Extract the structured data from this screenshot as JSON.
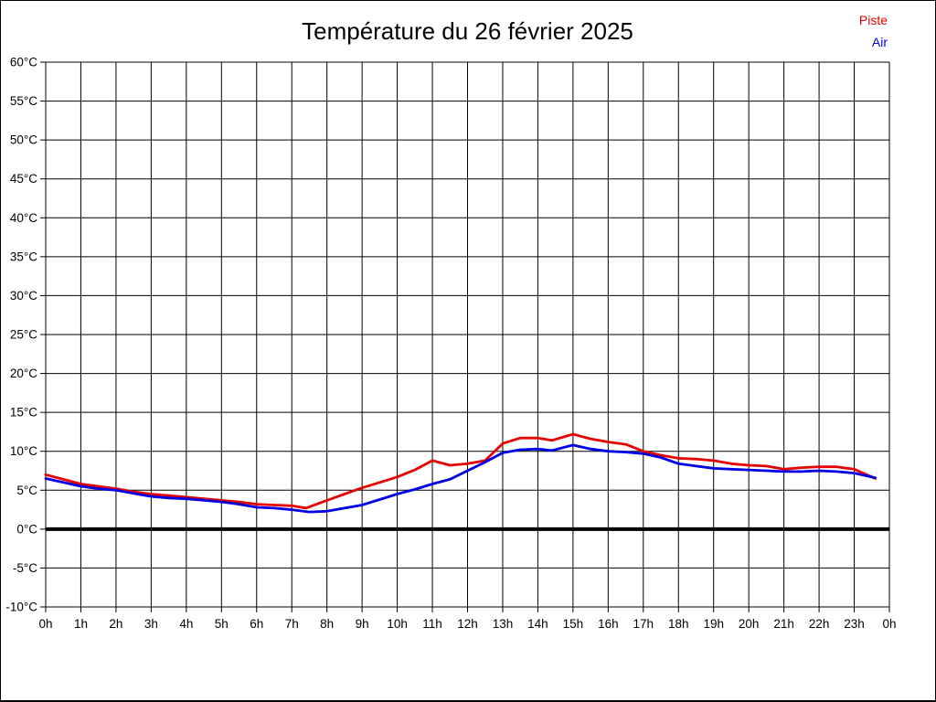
{
  "title": "Température du 26 février 2025",
  "legend": {
    "position": "top-right",
    "items": [
      {
        "label": "Piste",
        "color": "#e60000"
      },
      {
        "label": "Air",
        "color": "#0000e6"
      }
    ]
  },
  "chart_data": {
    "type": "line",
    "title": "Température du 26 février 2025",
    "xlabel": "",
    "ylabel": "",
    "xlim": [
      0,
      24
    ],
    "ylim": [
      -10,
      60
    ],
    "grid": true,
    "grid_color": "#000000",
    "background": "#ffffff",
    "legend_position": "top-right",
    "xtick_values": [
      0,
      1,
      2,
      3,
      4,
      5,
      6,
      7,
      8,
      9,
      10,
      11,
      12,
      13,
      14,
      15,
      16,
      17,
      18,
      19,
      20,
      21,
      22,
      23,
      24
    ],
    "xtick_labels": [
      "0h",
      "1h",
      "2h",
      "3h",
      "4h",
      "5h",
      "6h",
      "7h",
      "8h",
      "9h",
      "10h",
      "11h",
      "12h",
      "13h",
      "14h",
      "15h",
      "16h",
      "17h",
      "18h",
      "19h",
      "20h",
      "21h",
      "22h",
      "23h",
      "0h"
    ],
    "ytick_values": [
      -10,
      -5,
      0,
      5,
      10,
      15,
      20,
      25,
      30,
      35,
      40,
      45,
      50,
      55,
      60
    ],
    "ytick_labels": [
      "-10°C",
      "-5°C",
      "0°C",
      "5°C",
      "10°C",
      "15°C",
      "20°C",
      "25°C",
      "30°C",
      "35°C",
      "40°C",
      "45°C",
      "50°C",
      "55°C",
      "60°C"
    ],
    "zero_line": {
      "value": 0,
      "color": "#000000",
      "width": 4
    },
    "series": [
      {
        "name": "Piste",
        "color": "#e60000",
        "unit": "°C",
        "points": [
          [
            0,
            7.0
          ],
          [
            0.5,
            6.4
          ],
          [
            1,
            5.8
          ],
          [
            1.5,
            5.5
          ],
          [
            2,
            5.2
          ],
          [
            2.5,
            4.8
          ],
          [
            3,
            4.5
          ],
          [
            3.5,
            4.3
          ],
          [
            4,
            4.1
          ],
          [
            4.5,
            3.9
          ],
          [
            5,
            3.7
          ],
          [
            5.5,
            3.5
          ],
          [
            6,
            3.2
          ],
          [
            6.5,
            3.1
          ],
          [
            7,
            3.0
          ],
          [
            7.4,
            2.7
          ],
          [
            8,
            3.7
          ],
          [
            8.5,
            4.5
          ],
          [
            9,
            5.3
          ],
          [
            9.5,
            6.0
          ],
          [
            10,
            6.7
          ],
          [
            10.5,
            7.6
          ],
          [
            11,
            8.8
          ],
          [
            11.5,
            8.2
          ],
          [
            12,
            8.4
          ],
          [
            12.5,
            8.8
          ],
          [
            13,
            11.0
          ],
          [
            13.5,
            11.7
          ],
          [
            14,
            11.7
          ],
          [
            14.4,
            11.4
          ],
          [
            15,
            12.2
          ],
          [
            15.5,
            11.6
          ],
          [
            16,
            11.2
          ],
          [
            16.5,
            10.9
          ],
          [
            17,
            10.0
          ],
          [
            17.5,
            9.5
          ],
          [
            18,
            9.1
          ],
          [
            18.5,
            9.0
          ],
          [
            19,
            8.8
          ],
          [
            19.5,
            8.4
          ],
          [
            20,
            8.2
          ],
          [
            20.5,
            8.1
          ],
          [
            21,
            7.7
          ],
          [
            21.5,
            7.9
          ],
          [
            22,
            8.0
          ],
          [
            22.5,
            8.0
          ],
          [
            23,
            7.7
          ],
          [
            23.3,
            7.1
          ],
          [
            23.6,
            6.5
          ]
        ]
      },
      {
        "name": "Air",
        "color": "#0000e6",
        "unit": "°C",
        "points": [
          [
            0,
            6.5
          ],
          [
            0.5,
            6.0
          ],
          [
            1,
            5.5
          ],
          [
            1.5,
            5.2
          ],
          [
            2,
            5.0
          ],
          [
            2.5,
            4.6
          ],
          [
            3,
            4.2
          ],
          [
            3.5,
            4.0
          ],
          [
            4,
            3.9
          ],
          [
            4.5,
            3.7
          ],
          [
            5,
            3.5
          ],
          [
            5.5,
            3.2
          ],
          [
            6,
            2.8
          ],
          [
            6.5,
            2.7
          ],
          [
            7,
            2.5
          ],
          [
            7.5,
            2.2
          ],
          [
            8,
            2.3
          ],
          [
            8.5,
            2.7
          ],
          [
            9,
            3.1
          ],
          [
            9.5,
            3.8
          ],
          [
            10,
            4.5
          ],
          [
            10.5,
            5.1
          ],
          [
            11,
            5.8
          ],
          [
            11.5,
            6.4
          ],
          [
            12,
            7.5
          ],
          [
            12.5,
            8.6
          ],
          [
            13,
            9.8
          ],
          [
            13.5,
            10.2
          ],
          [
            14,
            10.3
          ],
          [
            14.4,
            10.1
          ],
          [
            15,
            10.8
          ],
          [
            15.5,
            10.3
          ],
          [
            16,
            10.0
          ],
          [
            16.5,
            9.9
          ],
          [
            17,
            9.7
          ],
          [
            17.5,
            9.2
          ],
          [
            18,
            8.4
          ],
          [
            18.5,
            8.1
          ],
          [
            19,
            7.8
          ],
          [
            19.5,
            7.7
          ],
          [
            20,
            7.6
          ],
          [
            20.5,
            7.5
          ],
          [
            21,
            7.4
          ],
          [
            21.5,
            7.4
          ],
          [
            22,
            7.5
          ],
          [
            22.5,
            7.4
          ],
          [
            23,
            7.2
          ],
          [
            23.3,
            6.9
          ],
          [
            23.6,
            6.6
          ]
        ]
      }
    ]
  }
}
